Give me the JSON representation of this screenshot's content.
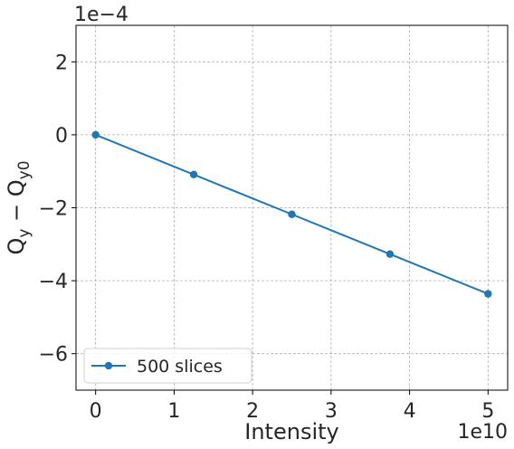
{
  "chart_data": {
    "type": "line",
    "xlabel": "Intensity",
    "ylabel": "Q_y − Q_y0",
    "x_offset_label": "1e10",
    "y_offset_label": "1e−4",
    "xlim": [
      -0.25,
      5.25
    ],
    "ylim": [
      -7,
      3
    ],
    "x_ticks": [
      0,
      1,
      2,
      3,
      4,
      5
    ],
    "y_ticks": [
      -6,
      -4,
      -2,
      0,
      2
    ],
    "x_tick_labels": [
      "0",
      "1",
      "2",
      "3",
      "4",
      "5"
    ],
    "y_tick_labels": [
      "−6",
      "−4",
      "−2",
      "0",
      "2"
    ],
    "grid": true,
    "legend_position": "lower-left",
    "series": [
      {
        "name": "500 slices",
        "color": "#1f77b4",
        "x": [
          0,
          1.25,
          2.5,
          3.75,
          5
        ],
        "y": [
          0,
          -1.09,
          -2.18,
          -3.27,
          -4.36
        ]
      }
    ]
  }
}
